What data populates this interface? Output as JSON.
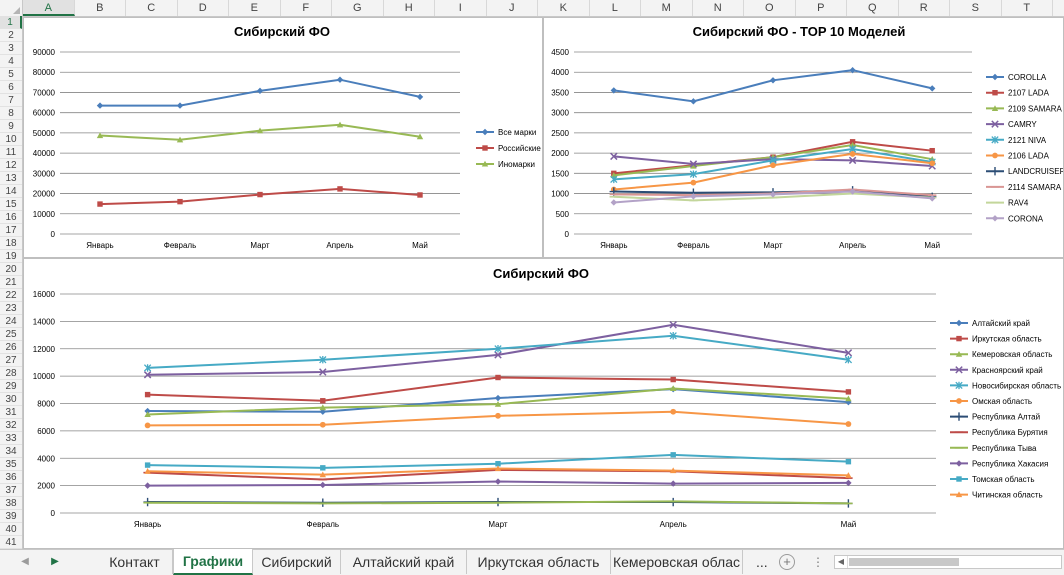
{
  "columns": [
    "A",
    "B",
    "C",
    "D",
    "E",
    "F",
    "G",
    "H",
    "I",
    "J",
    "K",
    "L",
    "M",
    "N",
    "O",
    "P",
    "Q",
    "R",
    "S",
    "T"
  ],
  "active_column": "A",
  "rows": [
    "1",
    "2",
    "3",
    "4",
    "5",
    "6",
    "7",
    "8",
    "9",
    "10",
    "11",
    "12",
    "13",
    "14",
    "15",
    "16",
    "17",
    "18",
    "19",
    "20",
    "21",
    "22",
    "23",
    "24",
    "25",
    "26",
    "27",
    "28",
    "29",
    "30",
    "31",
    "32",
    "33",
    "34",
    "35",
    "36",
    "37",
    "38",
    "39",
    "40",
    "41"
  ],
  "active_row": "1",
  "tabs": {
    "items": [
      "Контакт",
      "Графики",
      "Сибирский",
      "Алтайский край",
      "Иркутская область",
      "Кемеровская облас"
    ],
    "active": "Графики",
    "more": "...",
    "add_symbol": "+",
    "options_symbol": "⋮"
  },
  "icons": {
    "prev_sheet": "triangle-left-icon",
    "next_sheet": "triangle-right-icon",
    "add_sheet": "plus-circle-icon"
  },
  "chart_data": [
    {
      "type": "line",
      "title": "Сибирский ФО",
      "categories": [
        "Январь",
        "Февраль",
        "Март",
        "Апрель",
        "Май"
      ],
      "ylim": [
        0,
        90000
      ],
      "yticks": [
        "0",
        "10000",
        "20000",
        "30000",
        "40000",
        "50000",
        "60000",
        "70000",
        "80000",
        "90000"
      ],
      "legend": "right",
      "grid": true,
      "series": [
        {
          "name": "Все марки",
          "color": "#4a7ebb",
          "marker": "diamond",
          "values": [
            63500,
            63500,
            70800,
            76300,
            67800
          ]
        },
        {
          "name": "Российские",
          "color": "#be4b48",
          "marker": "square",
          "values": [
            14800,
            16000,
            19500,
            22300,
            19300
          ]
        },
        {
          "name": "Иномарки",
          "color": "#98b954",
          "marker": "triangle",
          "values": [
            48700,
            46600,
            51100,
            54000,
            48100
          ]
        }
      ]
    },
    {
      "type": "line",
      "title": "Сибирский ФО - TOP 10 Моделей",
      "categories": [
        "Январь",
        "Февраль",
        "Март",
        "Апрель",
        "Май"
      ],
      "ylim": [
        0,
        4500
      ],
      "yticks": [
        "0",
        "500",
        "1000",
        "1500",
        "2000",
        "2500",
        "3000",
        "3500",
        "4000",
        "4500"
      ],
      "legend": "right",
      "grid": true,
      "series": [
        {
          "name": "COROLLA",
          "color": "#4a7ebb",
          "marker": "diamond",
          "values": [
            3550,
            3280,
            3800,
            4050,
            3600
          ]
        },
        {
          "name": "2107 LADA",
          "color": "#be4b48",
          "marker": "square",
          "values": [
            1500,
            1700,
            1900,
            2280,
            2060
          ]
        },
        {
          "name": "2109 SAMARA",
          "color": "#98b954",
          "marker": "triangle",
          "values": [
            1450,
            1680,
            1900,
            2200,
            1850
          ]
        },
        {
          "name": "CAMRY",
          "color": "#7d60a0",
          "marker": "x",
          "values": [
            1920,
            1730,
            1850,
            1820,
            1680
          ]
        },
        {
          "name": "2121 NIVA",
          "color": "#46aac5",
          "marker": "star",
          "values": [
            1350,
            1480,
            1820,
            2100,
            1780
          ]
        },
        {
          "name": "2106 LADA",
          "color": "#f79646",
          "marker": "circle",
          "values": [
            1100,
            1270,
            1700,
            1980,
            1750
          ]
        },
        {
          "name": "LANDCRUISER",
          "color": "#2c4d75",
          "marker": "plus",
          "values": [
            1050,
            1020,
            1030,
            1080,
            920
          ]
        },
        {
          "name": "2114 SAMARA",
          "color": "#d99694",
          "marker": "dash",
          "values": [
            980,
            960,
            1000,
            1100,
            960
          ]
        },
        {
          "name": "RAV4",
          "color": "#c3d69b",
          "marker": "dash",
          "values": [
            920,
            830,
            900,
            1000,
            900
          ]
        },
        {
          "name": "CORONA",
          "color": "#b3a2c7",
          "marker": "diamond",
          "values": [
            780,
            930,
            980,
            1050,
            880
          ]
        }
      ]
    },
    {
      "type": "line",
      "title": "Сибирский ФО",
      "categories": [
        "Январь",
        "Февраль",
        "Март",
        "Апрель",
        "Май"
      ],
      "ylim": [
        0,
        16000
      ],
      "yticks": [
        "0",
        "2000",
        "4000",
        "6000",
        "8000",
        "10000",
        "12000",
        "14000",
        "16000"
      ],
      "legend": "right",
      "grid": true,
      "series": [
        {
          "name": "Алтайский край",
          "color": "#4a7ebb",
          "marker": "diamond",
          "values": [
            7450,
            7400,
            8400,
            9050,
            8100
          ]
        },
        {
          "name": "Иркутская область",
          "color": "#be4b48",
          "marker": "square",
          "values": [
            8650,
            8200,
            9900,
            9750,
            8850
          ]
        },
        {
          "name": "Кемеровская область",
          "color": "#98b954",
          "marker": "triangle",
          "values": [
            7200,
            7700,
            7950,
            9100,
            8350
          ]
        },
        {
          "name": "Красноярский край",
          "color": "#7d60a0",
          "marker": "x",
          "values": [
            10100,
            10300,
            11550,
            13750,
            11700
          ]
        },
        {
          "name": "Новосибирская область",
          "color": "#46aac5",
          "marker": "star",
          "values": [
            10600,
            11200,
            12000,
            12950,
            11200
          ]
        },
        {
          "name": "Омская область",
          "color": "#f79646",
          "marker": "circle",
          "values": [
            6400,
            6450,
            7100,
            7400,
            6500
          ]
        },
        {
          "name": "Республика Алтай",
          "color": "#2c4d75",
          "marker": "plus",
          "values": [
            800,
            750,
            800,
            800,
            700
          ]
        },
        {
          "name": "Республика Бурятия",
          "color": "#be4b48",
          "marker": "dash",
          "values": [
            2950,
            2450,
            3150,
            3050,
            2550
          ]
        },
        {
          "name": "Республика Тыва",
          "color": "#98b954",
          "marker": "dash",
          "values": [
            750,
            700,
            750,
            850,
            700
          ]
        },
        {
          "name": "Республика Хакасия",
          "color": "#7d60a0",
          "marker": "diamond",
          "values": [
            2000,
            2050,
            2300,
            2150,
            2200
          ]
        },
        {
          "name": "Томская область",
          "color": "#46aac5",
          "marker": "square",
          "values": [
            3500,
            3300,
            3600,
            4250,
            3750
          ]
        },
        {
          "name": "Читинская область",
          "color": "#f79646",
          "marker": "triangle",
          "values": [
            3050,
            2800,
            3250,
            3100,
            2750
          ]
        }
      ]
    }
  ]
}
